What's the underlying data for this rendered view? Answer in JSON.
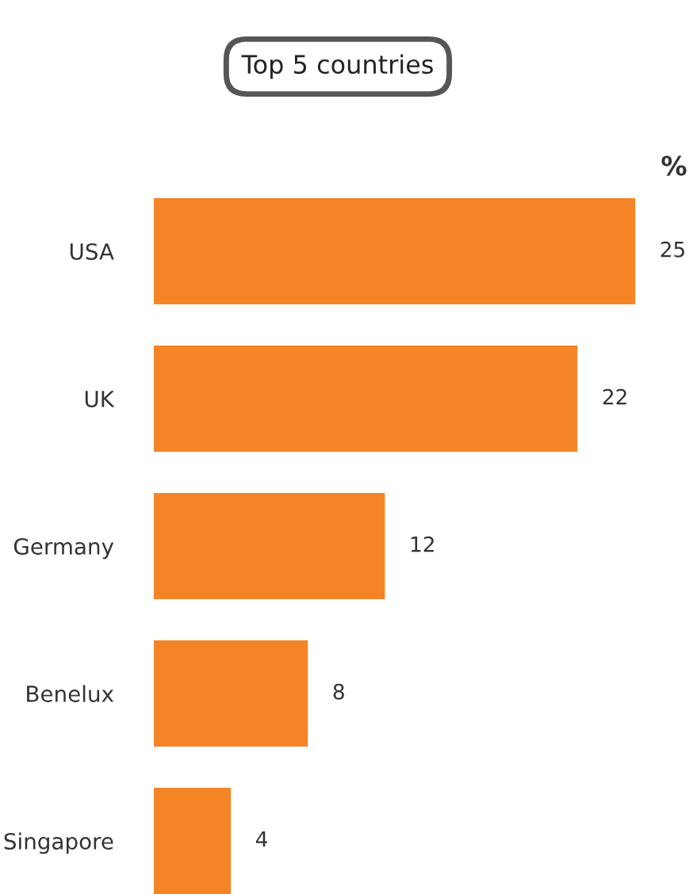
{
  "chart_data": {
    "type": "bar",
    "orientation": "horizontal",
    "title": "Top 5 countries",
    "xlabel": "%",
    "categories": [
      "USA",
      "UK",
      "Germany",
      "Benelux",
      "Singapore"
    ],
    "values": [
      25,
      22,
      12,
      8,
      4
    ],
    "color": "#f58426",
    "data_labels": true
  }
}
